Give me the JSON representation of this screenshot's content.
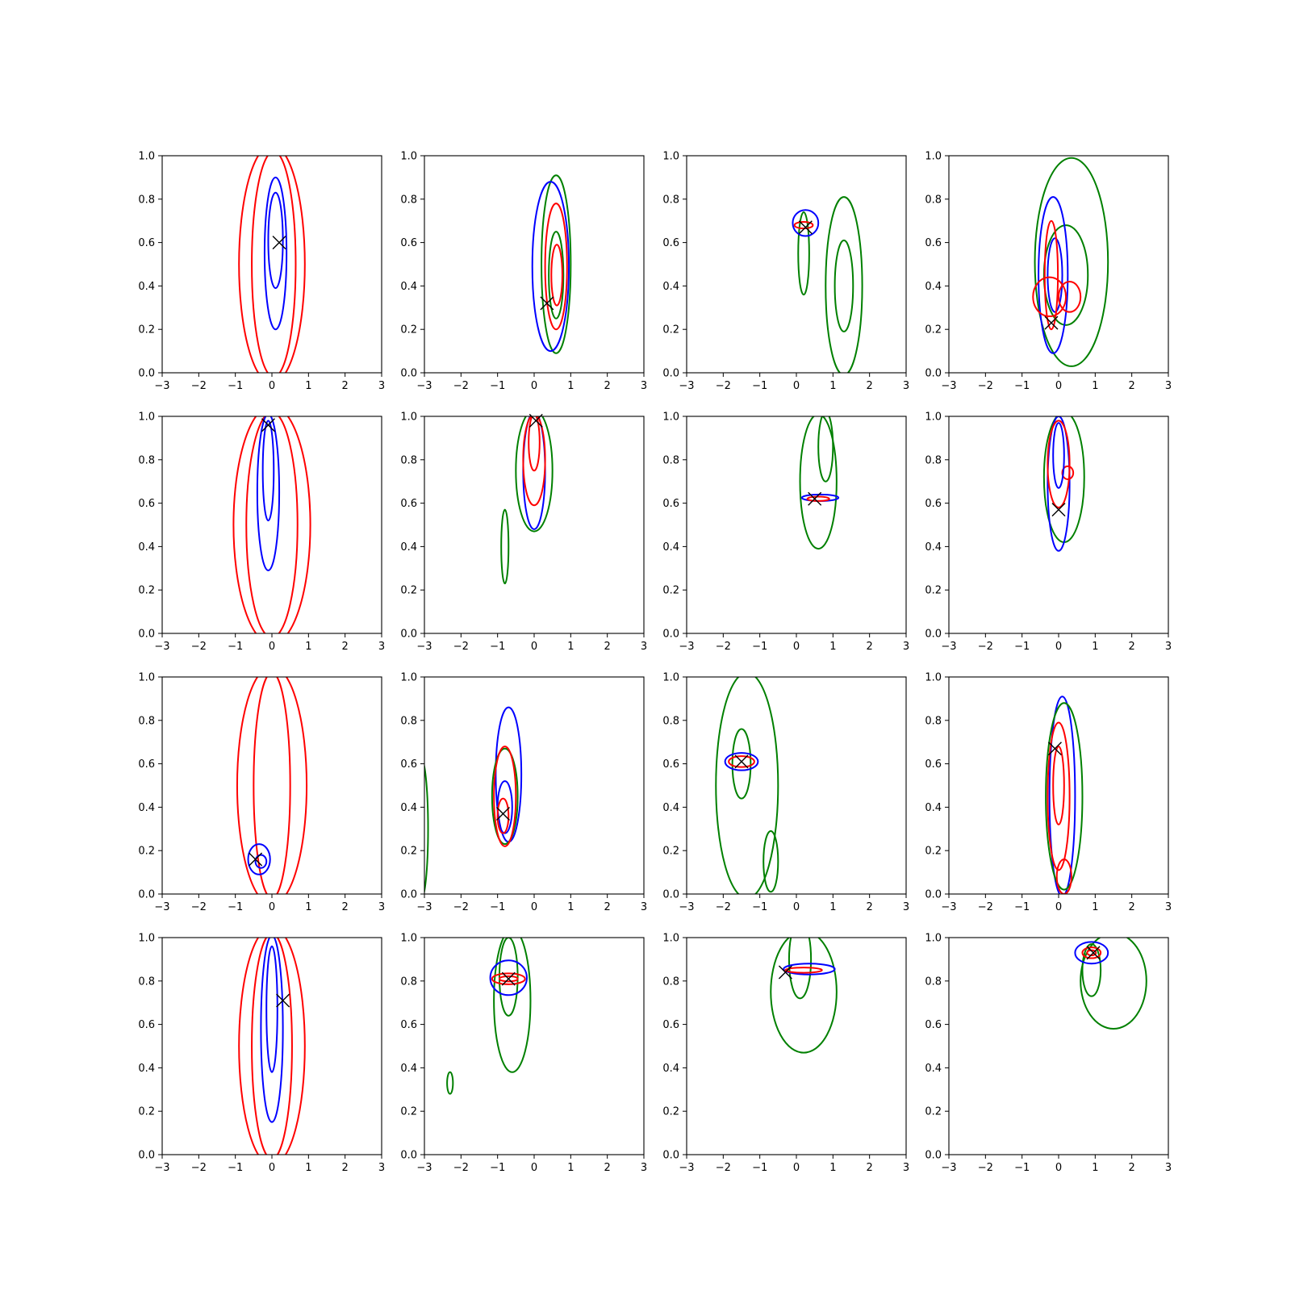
{
  "chart_data": {
    "type": "contour",
    "grid": {
      "rows": 4,
      "cols": 4
    },
    "xlim": [
      -3,
      3
    ],
    "ylim": [
      0,
      1
    ],
    "xticks": [
      -3,
      -2,
      -1,
      0,
      1,
      2,
      3
    ],
    "yticks": [
      0.0,
      0.2,
      0.4,
      0.6,
      0.8,
      1.0
    ],
    "ytick_labels": [
      "0.0",
      "0.2",
      "0.4",
      "0.6",
      "0.8",
      "1.0"
    ],
    "xtick_labels": [
      "−3",
      "−2",
      "−1",
      "0",
      "1",
      "2",
      "3"
    ],
    "grid_lines": false,
    "colors": {
      "red": "#ff0000",
      "blue": "#0000ff",
      "green": "#008000",
      "marker": "#000000"
    },
    "panels": [
      {
        "marker": [
          0.2,
          0.6
        ],
        "contours": [
          {
            "color": "red",
            "cx": 0.0,
            "cy": 0.5,
            "rx": 0.9,
            "ry": 0.55
          },
          {
            "color": "red",
            "cx": 0.05,
            "cy": 0.5,
            "rx": 0.6,
            "ry": 0.52
          },
          {
            "color": "blue",
            "cx": 0.1,
            "cy": 0.55,
            "rx": 0.3,
            "ry": 0.35
          },
          {
            "color": "blue",
            "cx": 0.1,
            "cy": 0.61,
            "rx": 0.2,
            "ry": 0.22
          }
        ]
      },
      {
        "marker": [
          0.35,
          0.32
        ],
        "contours": [
          {
            "color": "green",
            "cx": 0.6,
            "cy": 0.5,
            "rx": 0.4,
            "ry": 0.41
          },
          {
            "color": "blue",
            "cx": 0.45,
            "cy": 0.49,
            "rx": 0.5,
            "ry": 0.39
          },
          {
            "color": "red",
            "cx": 0.6,
            "cy": 0.49,
            "rx": 0.3,
            "ry": 0.29
          },
          {
            "color": "green",
            "cx": 0.6,
            "cy": 0.45,
            "rx": 0.2,
            "ry": 0.2
          },
          {
            "color": "red",
            "cx": 0.62,
            "cy": 0.45,
            "rx": 0.15,
            "ry": 0.14
          }
        ]
      },
      {
        "marker": [
          0.25,
          0.67
        ],
        "contours": [
          {
            "color": "green",
            "cx": 1.3,
            "cy": 0.4,
            "rx": 0.5,
            "ry": 0.41
          },
          {
            "color": "green",
            "cx": 1.3,
            "cy": 0.4,
            "rx": 0.25,
            "ry": 0.21
          },
          {
            "color": "green",
            "cx": 0.2,
            "cy": 0.55,
            "rx": 0.15,
            "ry": 0.19
          },
          {
            "color": "blue",
            "cx": 0.25,
            "cy": 0.69,
            "rx": 0.35,
            "ry": 0.06
          },
          {
            "color": "red",
            "cx": 0.2,
            "cy": 0.68,
            "rx": 0.25,
            "ry": 0.015
          }
        ]
      },
      {
        "marker": [
          -0.2,
          0.23
        ],
        "contours": [
          {
            "color": "green",
            "cx": 0.35,
            "cy": 0.51,
            "rx": 1.0,
            "ry": 0.48
          },
          {
            "color": "green",
            "cx": 0.2,
            "cy": 0.45,
            "rx": 0.6,
            "ry": 0.23
          },
          {
            "color": "blue",
            "cx": -0.15,
            "cy": 0.45,
            "rx": 0.4,
            "ry": 0.36
          },
          {
            "color": "blue",
            "cx": -0.1,
            "cy": 0.45,
            "rx": 0.2,
            "ry": 0.17
          },
          {
            "color": "red",
            "cx": -0.25,
            "cy": 0.35,
            "rx": 0.45,
            "ry": 0.09
          },
          {
            "color": "red",
            "cx": 0.3,
            "cy": 0.35,
            "rx": 0.3,
            "ry": 0.07
          },
          {
            "color": "red",
            "cx": -0.2,
            "cy": 0.45,
            "rx": 0.18,
            "ry": 0.25
          }
        ]
      },
      {
        "marker": [
          -0.1,
          0.96
        ],
        "contours": [
          {
            "color": "red",
            "cx": 0.0,
            "cy": 0.5,
            "rx": 1.05,
            "ry": 0.55
          },
          {
            "color": "red",
            "cx": 0.0,
            "cy": 0.5,
            "rx": 0.7,
            "ry": 0.52
          },
          {
            "color": "blue",
            "cx": -0.1,
            "cy": 0.65,
            "rx": 0.3,
            "ry": 0.36
          },
          {
            "color": "blue",
            "cx": -0.1,
            "cy": 0.75,
            "rx": 0.15,
            "ry": 0.23
          }
        ]
      },
      {
        "marker": [
          0.05,
          0.98
        ],
        "contours": [
          {
            "color": "green",
            "cx": 0.0,
            "cy": 0.75,
            "rx": 0.5,
            "ry": 0.28
          },
          {
            "color": "green",
            "cx": -0.8,
            "cy": 0.4,
            "rx": 0.1,
            "ry": 0.17
          },
          {
            "color": "blue",
            "cx": 0.0,
            "cy": 0.75,
            "rx": 0.3,
            "ry": 0.27
          },
          {
            "color": "red",
            "cx": 0.0,
            "cy": 0.8,
            "rx": 0.3,
            "ry": 0.21
          },
          {
            "color": "red",
            "cx": 0.0,
            "cy": 0.88,
            "rx": 0.15,
            "ry": 0.13
          }
        ]
      },
      {
        "marker": [
          0.5,
          0.62
        ],
        "contours": [
          {
            "color": "green",
            "cx": 0.6,
            "cy": 0.7,
            "rx": 0.5,
            "ry": 0.31
          },
          {
            "color": "green",
            "cx": 0.8,
            "cy": 0.86,
            "rx": 0.2,
            "ry": 0.16
          },
          {
            "color": "blue",
            "cx": 0.65,
            "cy": 0.625,
            "rx": 0.5,
            "ry": 0.015
          },
          {
            "color": "red",
            "cx": 0.6,
            "cy": 0.62,
            "rx": 0.3,
            "ry": 0.01
          }
        ]
      },
      {
        "marker": [
          0.0,
          0.57
        ],
        "contours": [
          {
            "color": "green",
            "cx": 0.15,
            "cy": 0.72,
            "rx": 0.55,
            "ry": 0.3
          },
          {
            "color": "blue",
            "cx": 0.0,
            "cy": 0.69,
            "rx": 0.3,
            "ry": 0.31
          },
          {
            "color": "red",
            "cx": 0.0,
            "cy": 0.78,
            "rx": 0.3,
            "ry": 0.2
          },
          {
            "color": "red",
            "cx": 0.25,
            "cy": 0.74,
            "rx": 0.15,
            "ry": 0.03
          },
          {
            "color": "blue",
            "cx": 0.0,
            "cy": 0.82,
            "rx": 0.15,
            "ry": 0.15
          }
        ]
      },
      {
        "marker": [
          -0.45,
          0.16
        ],
        "contours": [
          {
            "color": "red",
            "cx": 0.0,
            "cy": 0.5,
            "rx": 0.95,
            "ry": 0.55
          },
          {
            "color": "red",
            "cx": 0.0,
            "cy": 0.5,
            "rx": 0.5,
            "ry": 0.52
          },
          {
            "color": "blue",
            "cx": -0.35,
            "cy": 0.16,
            "rx": 0.3,
            "ry": 0.07
          },
          {
            "color": "blue",
            "cx": -0.3,
            "cy": 0.15,
            "rx": 0.15,
            "ry": 0.03
          }
        ]
      },
      {
        "marker": [
          -0.85,
          0.37
        ],
        "contours": [
          {
            "color": "blue",
            "cx": -0.7,
            "cy": 0.55,
            "rx": 0.35,
            "ry": 0.31
          },
          {
            "color": "green",
            "cx": -0.8,
            "cy": 0.45,
            "rx": 0.35,
            "ry": 0.22
          },
          {
            "color": "red",
            "cx": -0.8,
            "cy": 0.45,
            "rx": 0.3,
            "ry": 0.23
          },
          {
            "color": "blue",
            "cx": -0.8,
            "cy": 0.4,
            "rx": 0.2,
            "ry": 0.12
          },
          {
            "color": "red",
            "cx": -0.85,
            "cy": 0.36,
            "rx": 0.15,
            "ry": 0.08
          },
          {
            "color": "green",
            "cx": -3.1,
            "cy": 0.3,
            "rx": 0.2,
            "ry": 0.33
          }
        ]
      },
      {
        "marker": [
          -1.5,
          0.61
        ],
        "contours": [
          {
            "color": "green",
            "cx": -1.35,
            "cy": 0.5,
            "rx": 0.85,
            "ry": 0.52
          },
          {
            "color": "green",
            "cx": -1.5,
            "cy": 0.6,
            "rx": 0.25,
            "ry": 0.16
          },
          {
            "color": "green",
            "cx": -0.7,
            "cy": 0.15,
            "rx": 0.2,
            "ry": 0.14
          },
          {
            "color": "blue",
            "cx": -1.5,
            "cy": 0.61,
            "rx": 0.45,
            "ry": 0.04
          },
          {
            "color": "red",
            "cx": -1.5,
            "cy": 0.61,
            "rx": 0.35,
            "ry": 0.025
          }
        ]
      },
      {
        "marker": [
          -0.1,
          0.67
        ],
        "contours": [
          {
            "color": "blue",
            "cx": 0.1,
            "cy": 0.45,
            "rx": 0.35,
            "ry": 0.46
          },
          {
            "color": "green",
            "cx": 0.15,
            "cy": 0.45,
            "rx": 0.5,
            "ry": 0.43
          },
          {
            "color": "red",
            "cx": 0.0,
            "cy": 0.45,
            "rx": 0.3,
            "ry": 0.34
          },
          {
            "color": "red",
            "cx": 0.0,
            "cy": 0.5,
            "rx": 0.15,
            "ry": 0.18
          },
          {
            "color": "red",
            "cx": 0.15,
            "cy": 0.08,
            "rx": 0.2,
            "ry": 0.08
          }
        ]
      },
      {
        "marker": [
          0.3,
          0.71
        ],
        "contours": [
          {
            "color": "red",
            "cx": 0.0,
            "cy": 0.5,
            "rx": 0.9,
            "ry": 0.55
          },
          {
            "color": "red",
            "cx": 0.0,
            "cy": 0.5,
            "rx": 0.55,
            "ry": 0.52
          },
          {
            "color": "blue",
            "cx": 0.0,
            "cy": 0.58,
            "rx": 0.3,
            "ry": 0.43
          },
          {
            "color": "blue",
            "cx": 0.0,
            "cy": 0.67,
            "rx": 0.15,
            "ry": 0.29
          }
        ]
      },
      {
        "marker": [
          -0.7,
          0.81
        ],
        "contours": [
          {
            "color": "green",
            "cx": -0.6,
            "cy": 0.71,
            "rx": 0.5,
            "ry": 0.33
          },
          {
            "color": "green",
            "cx": -0.7,
            "cy": 0.82,
            "rx": 0.25,
            "ry": 0.18
          },
          {
            "color": "green",
            "cx": -2.3,
            "cy": 0.33,
            "rx": 0.08,
            "ry": 0.05
          },
          {
            "color": "blue",
            "cx": -0.7,
            "cy": 0.815,
            "rx": 0.5,
            "ry": 0.08
          },
          {
            "color": "red",
            "cx": -0.7,
            "cy": 0.81,
            "rx": 0.45,
            "ry": 0.025
          },
          {
            "color": "red",
            "cx": -0.7,
            "cy": 0.81,
            "rx": 0.25,
            "ry": 0.012
          }
        ]
      },
      {
        "marker": [
          -0.3,
          0.84
        ],
        "contours": [
          {
            "color": "green",
            "cx": 0.2,
            "cy": 0.75,
            "rx": 0.9,
            "ry": 0.28
          },
          {
            "color": "green",
            "cx": 0.1,
            "cy": 0.9,
            "rx": 0.3,
            "ry": 0.18
          },
          {
            "color": "blue",
            "cx": 0.35,
            "cy": 0.855,
            "rx": 0.7,
            "ry": 0.025
          },
          {
            "color": "red",
            "cx": 0.2,
            "cy": 0.85,
            "rx": 0.5,
            "ry": 0.012
          }
        ]
      },
      {
        "marker": [
          0.95,
          0.93
        ],
        "contours": [
          {
            "color": "green",
            "cx": 1.5,
            "cy": 0.8,
            "rx": 0.9,
            "ry": 0.22
          },
          {
            "color": "green",
            "cx": 0.9,
            "cy": 0.85,
            "rx": 0.25,
            "ry": 0.12
          },
          {
            "color": "blue",
            "cx": 0.9,
            "cy": 0.93,
            "rx": 0.45,
            "ry": 0.05
          },
          {
            "color": "red",
            "cx": 0.9,
            "cy": 0.93,
            "rx": 0.25,
            "ry": 0.025
          },
          {
            "color": "red",
            "cx": 0.9,
            "cy": 0.93,
            "rx": 0.12,
            "ry": 0.012
          }
        ]
      }
    ]
  }
}
